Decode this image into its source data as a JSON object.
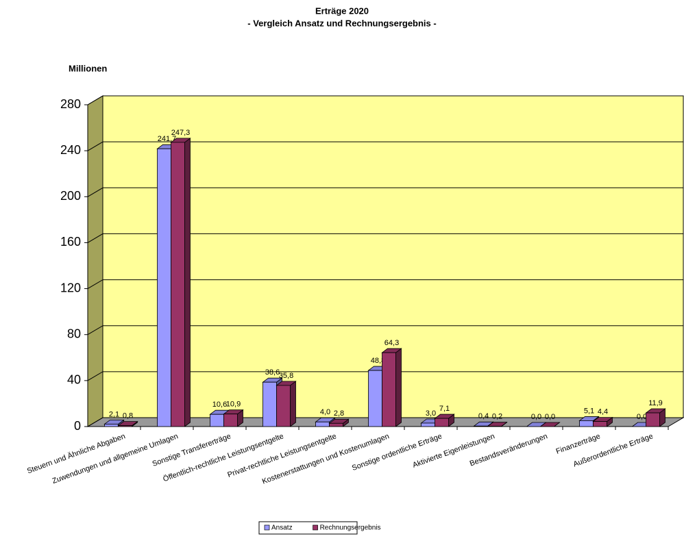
{
  "chart_data": {
    "type": "bar3d",
    "title": "Erträge 2020",
    "subtitle": "- Vergleich Ansatz und Rechnungsergebnis -",
    "y_axis_label": "Millionen",
    "categories": [
      "Steuern und Ähnliche Abgaben",
      "Zuwendungen und allgemeine Umlagen",
      "Sonstige Transfererträge",
      "Öffentlich-rechtliche Leistungsentgelte",
      "Privat-rechtliche Leistungsentgelte",
      "Kostenerstattungen und Kostenumlagen",
      "Sonstige ordentliche Erträge",
      "Aktivierte Eigenleistungen",
      "Bestandsveränderungen",
      "Finanzerträge",
      "Außerordentliche Erträge"
    ],
    "series": [
      {
        "name": "Ansatz",
        "color": "#9999ff",
        "values": [
          2.1,
          241.7,
          10.6,
          38.6,
          4.0,
          48.8,
          3.0,
          0.4,
          0.0,
          5.1,
          0.0
        ],
        "value_labels": [
          "2,1",
          "241,7",
          "10,6",
          "38,6",
          "4,0",
          "48,8",
          "3,0",
          "0,4",
          "0,0",
          "5,1",
          "0,0"
        ]
      },
      {
        "name": "Rechnungsergebnis",
        "color": "#993366",
        "values": [
          0.8,
          247.3,
          10.9,
          35.8,
          2.8,
          64.3,
          7.1,
          0.2,
          0.0,
          4.4,
          11.9
        ],
        "value_labels": [
          "0,8",
          "247,3",
          "10,9",
          "35,8",
          "2,8",
          "64,3",
          "7,1",
          "0,2",
          "0,0",
          "4,4",
          "11,9"
        ]
      }
    ],
    "ylim": [
      0,
      280
    ],
    "yticks": [
      0,
      40,
      80,
      120,
      160,
      200,
      240,
      280
    ],
    "grid": true,
    "background": "#ffff99",
    "legend": "bottom"
  }
}
